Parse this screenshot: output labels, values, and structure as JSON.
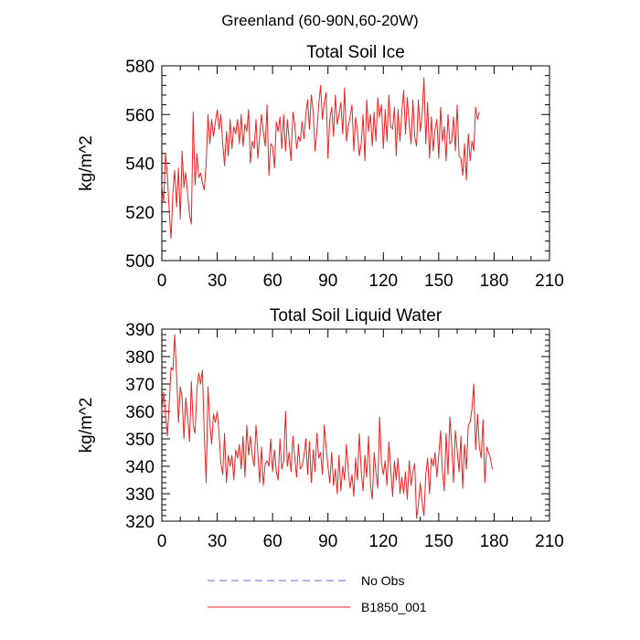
{
  "figure_title": "Greenland (60-90N,60-20W)",
  "legend": [
    {
      "label": "No Obs",
      "color": "#6666dd",
      "style": "dashed"
    },
    {
      "label": "B1850_001",
      "color": "#ee2222",
      "style": "solid"
    }
  ],
  "chart_data": [
    {
      "type": "line",
      "title": "Total Soil Ice",
      "xlabel": "",
      "ylabel": "kg/m^2",
      "xlim": [
        0,
        210
      ],
      "ylim": [
        500,
        580
      ],
      "xticks": [
        0,
        30,
        60,
        90,
        120,
        150,
        180,
        210
      ],
      "yticks": [
        500,
        520,
        540,
        560,
        580
      ],
      "series": [
        {
          "name": "B1850_001",
          "color": "#ee2222",
          "values": [
            531,
            524,
            544,
            535,
            520,
            509,
            528,
            537,
            522,
            538,
            517,
            545,
            530,
            536,
            527,
            519,
            515,
            561,
            531,
            544,
            534,
            536,
            532,
            529,
            540,
            560,
            548,
            558,
            551,
            557,
            562,
            554,
            560,
            548,
            539,
            553,
            543,
            558,
            546,
            555,
            552,
            558,
            548,
            560,
            547,
            556,
            553,
            562,
            540,
            549,
            546,
            558,
            542,
            551,
            560,
            553,
            547,
            564,
            535,
            548,
            547,
            538,
            557,
            553,
            559,
            546,
            560,
            545,
            558,
            549,
            541,
            561,
            556,
            546,
            551,
            549,
            557,
            550,
            560,
            566,
            554,
            568,
            561,
            545,
            553,
            564,
            572,
            558,
            565,
            569,
            542,
            558,
            563,
            551,
            568,
            556,
            560,
            565,
            552,
            571,
            549,
            555,
            559,
            564,
            545,
            559,
            553,
            543,
            548,
            560,
            541,
            566,
            553,
            560,
            547,
            561,
            549,
            567,
            559,
            564,
            546,
            562,
            549,
            568,
            555,
            554,
            563,
            543,
            562,
            549,
            561,
            570,
            552,
            567,
            556,
            548,
            566,
            551,
            547,
            566,
            553,
            560,
            575,
            548,
            565,
            542,
            559,
            545,
            554,
            558,
            542,
            563,
            549,
            555,
            541,
            560,
            548,
            549,
            559,
            545,
            564,
            543,
            542,
            535,
            548,
            533,
            552,
            541,
            549,
            545,
            563,
            558,
            561
          ]
        }
      ]
    },
    {
      "type": "line",
      "title": "Total Soil Liquid Water",
      "xlabel": "",
      "ylabel": "kg/m^2",
      "xlim": [
        0,
        210
      ],
      "ylim": [
        320,
        390
      ],
      "xticks": [
        0,
        30,
        60,
        90,
        120,
        150,
        180,
        210
      ],
      "yticks": [
        320,
        330,
        340,
        350,
        360,
        370,
        380,
        390
      ],
      "series": [
        {
          "name": "B1850_001",
          "color": "#ee2222",
          "values": [
            360,
            367,
            359,
            351,
            363,
            376,
            375,
            388,
            373,
            356,
            369,
            365,
            350,
            365,
            358,
            349,
            371,
            355,
            352,
            368,
            374,
            370,
            375,
            352,
            334,
            369,
            356,
            348,
            359,
            356,
            360,
            352,
            341,
            337,
            352,
            334,
            344,
            340,
            344,
            335,
            346,
            343,
            348,
            339,
            351,
            336,
            355,
            344,
            351,
            344,
            340,
            355,
            345,
            334,
            347,
            333,
            341,
            342,
            340,
            350,
            338,
            346,
            338,
            335,
            350,
            339,
            342,
            360,
            340,
            345,
            338,
            351,
            343,
            336,
            348,
            339,
            340,
            344,
            350,
            337,
            349,
            334,
            346,
            338,
            352,
            343,
            345,
            337,
            355,
            347,
            340,
            334,
            345,
            333,
            339,
            330,
            344,
            331,
            340,
            335,
            348,
            339,
            332,
            337,
            329,
            343,
            335,
            352,
            338,
            331,
            344,
            336,
            351,
            333,
            328,
            345,
            338,
            332,
            358,
            341,
            337,
            342,
            333,
            349,
            339,
            329,
            342,
            335,
            343,
            330,
            336,
            330,
            338,
            328,
            342,
            333,
            338,
            341,
            321,
            326,
            334,
            327,
            322,
            337,
            343,
            330,
            343,
            340,
            345,
            336,
            344,
            353,
            338,
            331,
            352,
            337,
            358,
            348,
            334,
            353,
            346,
            338,
            351,
            332,
            348,
            339,
            355,
            356,
            361,
            370,
            346,
            359,
            347,
            343,
            357,
            334,
            347,
            345,
            343,
            339
          ]
        }
      ]
    }
  ]
}
